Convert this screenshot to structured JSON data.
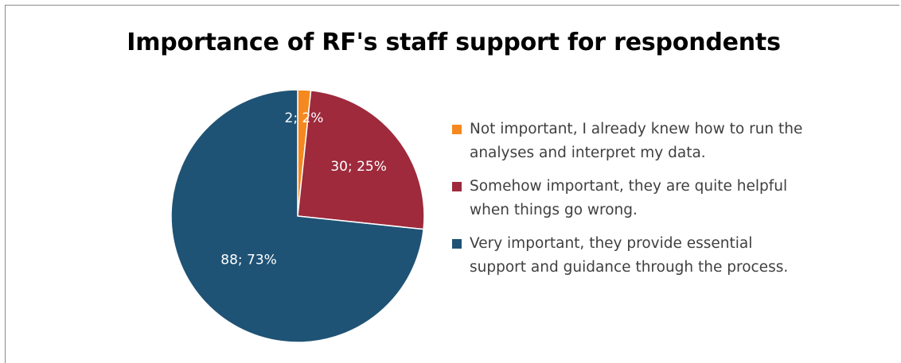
{
  "chart_data": {
    "type": "pie",
    "title": "Importance of RF's staff support for respondents",
    "legend_position": "right",
    "slices": [
      {
        "label": "Not important, I already knew how to run the analyses and interpret my data.",
        "legend_lines": [
          "Not important, I already knew how to run the",
          "analyses and interpret my data."
        ],
        "value": 2,
        "percent": 2,
        "data_label": "2; 2%",
        "color": "#F5891F"
      },
      {
        "label": "Somehow important, they are quite helpful when things go wrong.",
        "legend_lines": [
          "Somehow important, they are quite helpful",
          "when things go wrong."
        ],
        "value": 30,
        "percent": 25,
        "data_label": "30; 25%",
        "color": "#9E2A3C"
      },
      {
        "label": "Very important, they provide essential support and guidance through the process.",
        "legend_lines": [
          "Very important, they provide essential",
          "support and guidance through the process."
        ],
        "value": 88,
        "percent": 73,
        "data_label": "88; 73%",
        "color": "#1F5375"
      }
    ]
  }
}
